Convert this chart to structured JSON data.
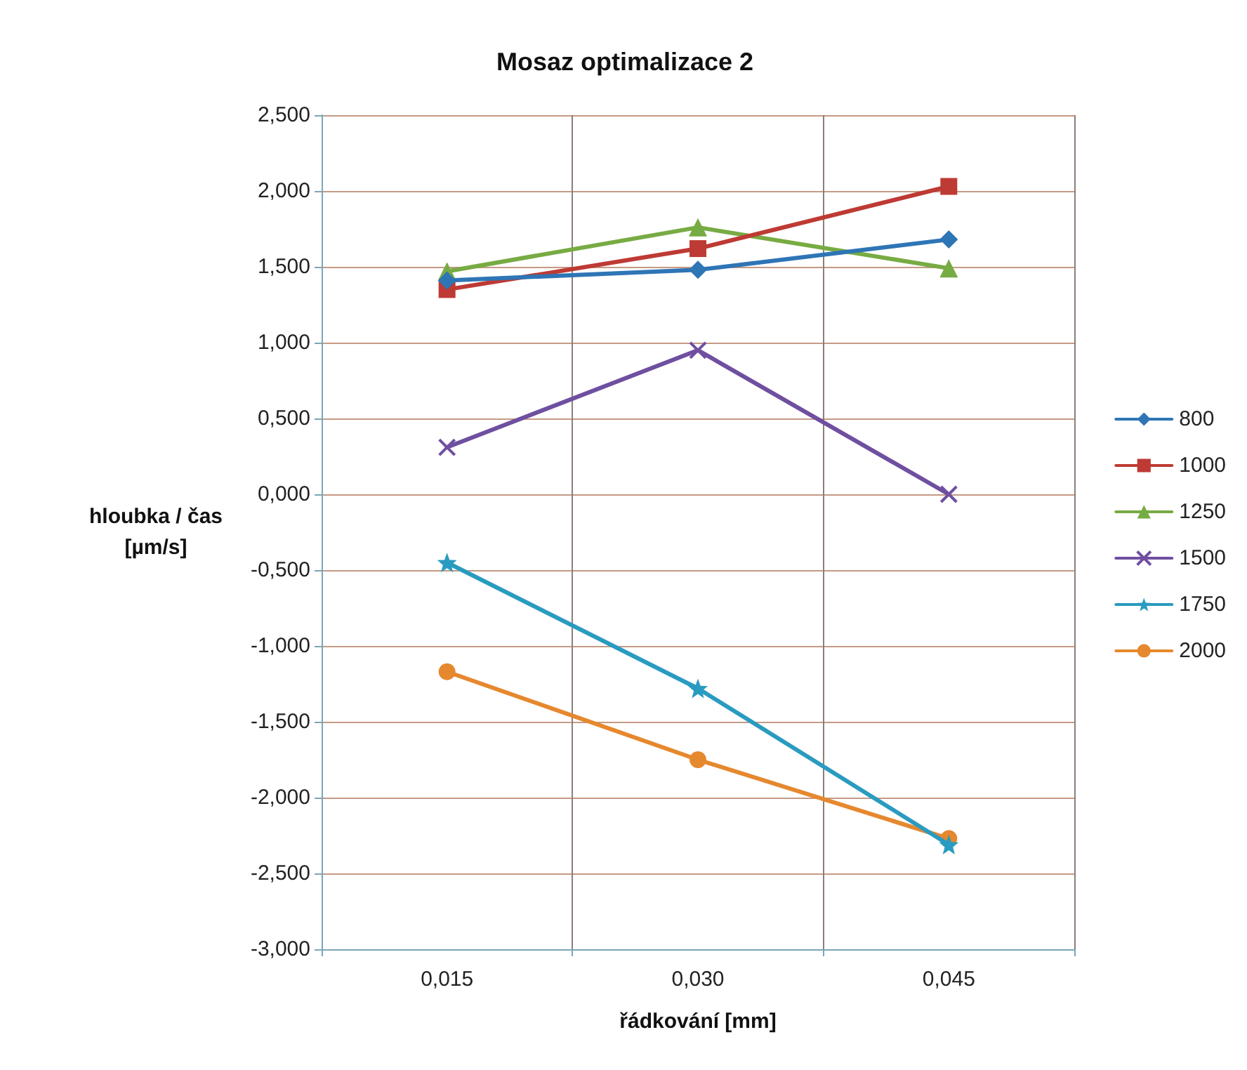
{
  "chart_data": {
    "type": "line",
    "title": "Mosaz optimalizace 2",
    "xlabel": "řádkování [mm]",
    "ylabel": "hloubka / čas\n[µm/s]",
    "categories": [
      "0,015",
      "0,030",
      "0,045"
    ],
    "series": [
      {
        "name": "800",
        "color": "#2e75b6",
        "marker": "diamond",
        "values": [
          1.41,
          1.48,
          1.68
        ]
      },
      {
        "name": "1000",
        "color": "#be3a34",
        "marker": "square",
        "values": [
          1.35,
          1.62,
          2.03
        ]
      },
      {
        "name": "1250",
        "color": "#77ab43",
        "marker": "triangle",
        "values": [
          1.47,
          1.76,
          1.49
        ]
      },
      {
        "name": "1500",
        "color": "#6f4fa0",
        "marker": "cross",
        "values": [
          0.31,
          0.95,
          0.0
        ]
      },
      {
        "name": "1750",
        "color": "#2a9bc0",
        "marker": "star",
        "values": [
          -0.45,
          -1.28,
          -2.31
        ]
      },
      {
        "name": "2000",
        "color": "#e6882e",
        "marker": "circle",
        "values": [
          -1.17,
          -1.75,
          -2.27
        ]
      }
    ],
    "ylim": [
      -3,
      2.5
    ],
    "yticks": [
      {
        "value": -3,
        "label": "-3,000"
      },
      {
        "value": -2.5,
        "label": "-2,500"
      },
      {
        "value": -2,
        "label": "-2,000"
      },
      {
        "value": -1.5,
        "label": "-1,500"
      },
      {
        "value": -1,
        "label": "-1,000"
      },
      {
        "value": -0.5,
        "label": "-0,500"
      },
      {
        "value": 0,
        "label": "0,000"
      },
      {
        "value": 0.5,
        "label": "0,500"
      },
      {
        "value": 1,
        "label": "1,000"
      },
      {
        "value": 1.5,
        "label": "1,500"
      },
      {
        "value": 2,
        "label": "2,000"
      },
      {
        "value": 2.5,
        "label": "2,500"
      }
    ],
    "grid": true,
    "legend": "right"
  }
}
